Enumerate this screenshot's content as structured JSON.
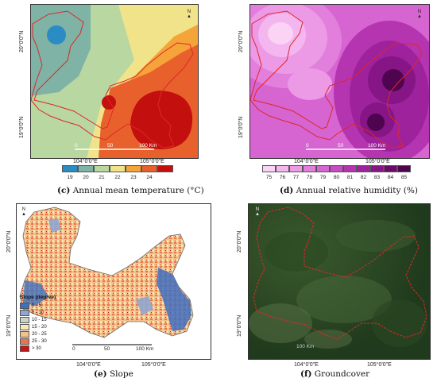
{
  "panels": {
    "c": {
      "letter": "(c)",
      "caption": "Annual mean temperature (°C)",
      "lat_labels": [
        "20°0'0\"N",
        "19°0'0\"N"
      ],
      "lon_labels": [
        "104°0'0\"E",
        "105°0'0\"E"
      ],
      "scale": {
        "zero": "0",
        "mid": "50",
        "end": "100 Km"
      },
      "legend": {
        "values": [
          "19",
          "20",
          "21",
          "22",
          "23",
          "24"
        ],
        "colors": [
          "#2b8cc4",
          "#7fb3a5",
          "#b9d7a0",
          "#f1e38a",
          "#f5a43a",
          "#e8612c",
          "#c40f0f"
        ]
      }
    },
    "d": {
      "letter": "(d)",
      "caption": "Annual relative humidity (%)",
      "lat_labels": [
        "20°0'0\"N",
        "19°0'0\"N"
      ],
      "lon_labels": [
        "104°0'0\"E",
        "105°0'0\"E"
      ],
      "scale": {
        "zero": "0",
        "mid": "50",
        "end": "100 Km"
      },
      "legend": {
        "values": [
          "75",
          "76",
          "77",
          "78",
          "79",
          "80",
          "81",
          "82",
          "83",
          "84",
          "85"
        ],
        "colors": [
          "#fbd3f4",
          "#f4b6ee",
          "#ec9ae6",
          "#e27fdc",
          "#d665d1",
          "#c84bc3",
          "#b535b1",
          "#9e229c",
          "#861585",
          "#6b0a6a",
          "#4e044f"
        ]
      }
    },
    "e": {
      "letter": "(e)",
      "caption": "Slope",
      "lat_labels": [
        "20°0'0\"N",
        "19°0'0\"N"
      ],
      "lon_labels": [
        "104°0'0\"E",
        "105°0'0\"E"
      ],
      "scale": {
        "zero": "0",
        "mid": "50",
        "end": "100 Km"
      },
      "legend": {
        "title": "Slope (degree)",
        "items": [
          {
            "label": "0 - 5",
            "color": "#3f6fbf"
          },
          {
            "label": "5 - 10",
            "color": "#8fa6cf"
          },
          {
            "label": "10 - 15",
            "color": "#c9d3c8"
          },
          {
            "label": "15 - 20",
            "color": "#f3eab7"
          },
          {
            "label": "20 - 25",
            "color": "#f4c08b"
          },
          {
            "label": "25 - 30",
            "color": "#e9744a"
          },
          {
            "label": "> 30",
            "color": "#c01818"
          }
        ]
      }
    },
    "f": {
      "letter": "(f)",
      "caption": "Groundcover",
      "lat_labels": [
        "20°0'0\"N",
        "19°0'0\"N"
      ],
      "lon_labels": [
        "104°0'0\"E",
        "105°0'0\"E"
      ],
      "scale": {
        "zero": "",
        "mid": "",
        "end": "100 Km"
      }
    }
  },
  "north_label": "N",
  "boundary_color": "#e0262a"
}
